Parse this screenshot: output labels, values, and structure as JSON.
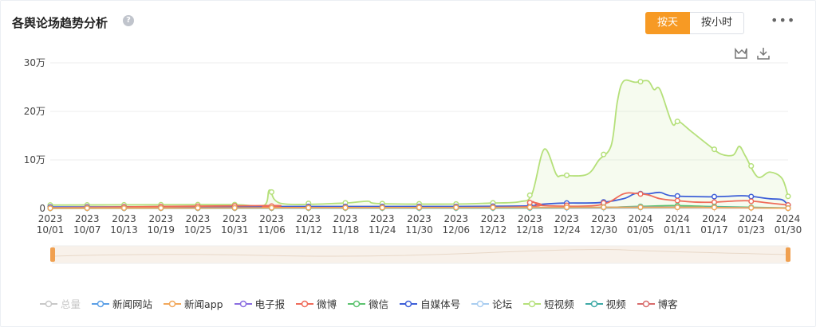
{
  "header": {
    "title": "各舆论场趋势分析",
    "help_icon": "?",
    "btn_day": "按天",
    "btn_hour": "按小时",
    "more": "•••"
  },
  "chart_data": {
    "type": "line",
    "ylabel_ticks": [
      "0",
      "10万",
      "20万",
      "30万"
    ],
    "ylim": [
      0,
      300000
    ],
    "x_ticks": [
      [
        "2023",
        "10/01"
      ],
      [
        "2023",
        "10/07"
      ],
      [
        "2023",
        "10/13"
      ],
      [
        "2023",
        "10/19"
      ],
      [
        "2023",
        "10/25"
      ],
      [
        "2023",
        "10/31"
      ],
      [
        "2023",
        "11/06"
      ],
      [
        "2023",
        "11/12"
      ],
      [
        "2023",
        "11/18"
      ],
      [
        "2023",
        "11/24"
      ],
      [
        "2023",
        "11/30"
      ],
      [
        "2023",
        "12/06"
      ],
      [
        "2023",
        "12/12"
      ],
      [
        "2023",
        "12/18"
      ],
      [
        "2023",
        "12/24"
      ],
      [
        "2023",
        "12/30"
      ],
      [
        "2024",
        "01/05"
      ],
      [
        "2024",
        "01/11"
      ],
      [
        "2024",
        "01/17"
      ],
      [
        "2024",
        "01/23"
      ],
      [
        "2024",
        "01/30"
      ]
    ],
    "x_start": "2023-10-01",
    "x_end": "2024-01-30",
    "grid": "horizontal",
    "colors": {
      "短视频": "#b5e07a",
      "自媒体号": "#3d5fd8",
      "微博": "#ef6b5a",
      "微信": "#5cc36f",
      "视频": "#3ea9a6",
      "新闻网站": "#5b9fe6",
      "新闻app": "#f2a85b"
    },
    "series": [
      {
        "name": "短视频",
        "points": [
          [
            "2023-10-01",
            7000
          ],
          [
            "2023-10-15",
            7500
          ],
          [
            "2023-10-31",
            8000
          ],
          [
            "2023-11-05",
            6000
          ],
          [
            "2023-11-06",
            38000
          ],
          [
            "2023-11-08",
            10000
          ],
          [
            "2023-11-18",
            11000
          ],
          [
            "2023-11-22",
            15000
          ],
          [
            "2023-11-24",
            10000
          ],
          [
            "2023-12-06",
            9000
          ],
          [
            "2023-12-12",
            11000
          ],
          [
            "2023-12-17",
            14000
          ],
          [
            "2023-12-19",
            30000
          ],
          [
            "2023-12-21",
            122000
          ],
          [
            "2023-12-23",
            70000
          ],
          [
            "2023-12-24",
            68000
          ],
          [
            "2023-12-28",
            70000
          ],
          [
            "2023-12-30",
            100000
          ],
          [
            "2024-01-01",
            130000
          ],
          [
            "2024-01-02",
            220000
          ],
          [
            "2024-01-03",
            262000
          ],
          [
            "2024-01-05",
            260000
          ],
          [
            "2024-01-07",
            263000
          ],
          [
            "2024-01-08",
            245000
          ],
          [
            "2024-01-09",
            245000
          ],
          [
            "2024-01-11",
            175000
          ],
          [
            "2024-01-12",
            180000
          ],
          [
            "2024-01-14",
            160000
          ],
          [
            "2024-01-17",
            130000
          ],
          [
            "2024-01-19",
            112000
          ],
          [
            "2024-01-21",
            110000
          ],
          [
            "2024-01-22",
            128000
          ],
          [
            "2024-01-23",
            108000
          ],
          [
            "2024-01-25",
            65000
          ],
          [
            "2024-01-27",
            75000
          ],
          [
            "2024-01-29",
            62000
          ],
          [
            "2024-01-30",
            25000
          ]
        ]
      },
      {
        "name": "自媒体号",
        "points": [
          [
            "2023-10-01",
            3000
          ],
          [
            "2023-11-06",
            4000
          ],
          [
            "2023-12-06",
            4000
          ],
          [
            "2023-12-18",
            5000
          ],
          [
            "2023-12-20",
            8000
          ],
          [
            "2023-12-24",
            11000
          ],
          [
            "2023-12-30",
            12000
          ],
          [
            "2024-01-03",
            20000
          ],
          [
            "2024-01-05",
            31000
          ],
          [
            "2024-01-07",
            30000
          ],
          [
            "2024-01-09",
            33000
          ],
          [
            "2024-01-11",
            26000
          ],
          [
            "2024-01-17",
            24000
          ],
          [
            "2024-01-20",
            25000
          ],
          [
            "2024-01-23",
            26000
          ],
          [
            "2024-01-27",
            20000
          ],
          [
            "2024-01-29",
            18000
          ],
          [
            "2024-01-30",
            7000
          ]
        ]
      },
      {
        "name": "微博",
        "points": [
          [
            "2023-10-01",
            1500
          ],
          [
            "2023-11-06",
            6000
          ],
          [
            "2023-11-07",
            2000
          ],
          [
            "2023-12-17",
            3000
          ],
          [
            "2023-12-19",
            14000
          ],
          [
            "2023-12-21",
            6000
          ],
          [
            "2023-12-30",
            7000
          ],
          [
            "2024-01-03",
            30000
          ],
          [
            "2024-01-05",
            31000
          ],
          [
            "2024-01-07",
            28000
          ],
          [
            "2024-01-09",
            20000
          ],
          [
            "2024-01-11",
            17000
          ],
          [
            "2024-01-15",
            13000
          ],
          [
            "2024-01-18",
            13000
          ],
          [
            "2024-01-23",
            16000
          ],
          [
            "2024-01-27",
            11000
          ],
          [
            "2024-01-30",
            7000
          ]
        ]
      },
      {
        "name": "微信",
        "points": [
          [
            "2023-10-01",
            500
          ],
          [
            "2023-12-20",
            1000
          ],
          [
            "2024-01-05",
            4000
          ],
          [
            "2024-01-11",
            6000
          ],
          [
            "2024-01-17",
            4000
          ],
          [
            "2024-01-30",
            1000
          ]
        ]
      },
      {
        "name": "视频",
        "points": [
          [
            "2023-10-01",
            300
          ],
          [
            "2024-01-05",
            2000
          ],
          [
            "2024-01-17",
            2500
          ],
          [
            "2024-01-30",
            500
          ]
        ]
      },
      {
        "name": "新闻网站",
        "points": [
          [
            "2023-10-01",
            800
          ],
          [
            "2023-12-20",
            1500
          ],
          [
            "2024-01-05",
            3000
          ],
          [
            "2024-01-17",
            2500
          ],
          [
            "2024-01-30",
            800
          ]
        ]
      },
      {
        "name": "新闻app",
        "points": [
          [
            "2023-10-01",
            500
          ],
          [
            "2024-01-05",
            2500
          ],
          [
            "2024-01-17",
            2000
          ],
          [
            "2024-01-30",
            500
          ]
        ]
      }
    ],
    "legend": [
      {
        "name": "总量",
        "color": "#c8c8c8",
        "active": false
      },
      {
        "name": "新闻网站",
        "color": "#5b9fe6",
        "active": true
      },
      {
        "name": "新闻app",
        "color": "#f2a85b",
        "active": true
      },
      {
        "name": "电子报",
        "color": "#8a6de0",
        "active": true
      },
      {
        "name": "微博",
        "color": "#ef6b5a",
        "active": true
      },
      {
        "name": "微信",
        "color": "#5cc36f",
        "active": true
      },
      {
        "name": "自媒体号",
        "color": "#3d5fd8",
        "active": true
      },
      {
        "name": "论坛",
        "color": "#a9cdf0",
        "active": true
      },
      {
        "name": "短视频",
        "color": "#b5e07a",
        "active": true
      },
      {
        "name": "视频",
        "color": "#3ea9a6",
        "active": true
      },
      {
        "name": "博客",
        "color": "#d86b6b",
        "active": true
      }
    ]
  }
}
